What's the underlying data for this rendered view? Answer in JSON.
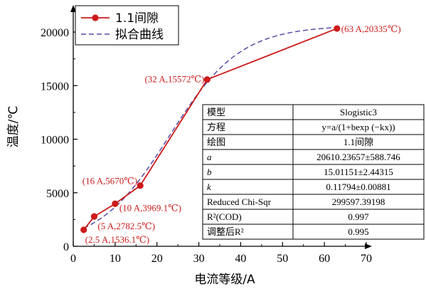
{
  "chart_data": {
    "type": "line",
    "xlabel": "电流等级/A",
    "ylabel": "温度/℃",
    "xlim": [
      0,
      70
    ],
    "ylim": [
      0,
      22000
    ],
    "xticks": [
      0,
      10,
      20,
      30,
      40,
      50,
      60,
      70
    ],
    "yticks": [
      0,
      5000,
      10000,
      15000,
      20000
    ],
    "xtick_labels": [
      "0",
      "10",
      "20",
      "30",
      "40",
      "50",
      "60",
      "70"
    ],
    "ytick_labels": [
      "0",
      "5000",
      "10000",
      "15000",
      "20000"
    ],
    "grid": false,
    "legend_position": "top-left",
    "series": [
      {
        "name": "1.1间隙",
        "style": "solid-markers",
        "color": "#cc1a1a",
        "x": [
          2.5,
          5,
          10,
          16,
          32,
          63
        ],
        "y": [
          1536.1,
          2782.5,
          3969.1,
          5670,
          15572,
          20335
        ]
      },
      {
        "name": "拟合曲线",
        "style": "dashed",
        "color": "#5b4aa8",
        "model": "logistic",
        "a": 20610.23657,
        "b": 15.01151,
        "k": 0.11794
      }
    ],
    "annotations": [
      {
        "x": 2.5,
        "y": 1536.1,
        "text": "(2.5 A,1536.1℃)"
      },
      {
        "x": 5,
        "y": 2782.5,
        "text": "(5 A,2782.5℃)"
      },
      {
        "x": 10,
        "y": 3969.1,
        "text": "(10 A,3969.1℃)"
      },
      {
        "x": 16,
        "y": 5670,
        "text": "(16 A,5670℃)"
      },
      {
        "x": 32,
        "y": 15572,
        "text": "(32 A,15572℃)"
      },
      {
        "x": 63,
        "y": 20335,
        "text": "(63 A,20335℃)"
      }
    ],
    "fit_table": [
      {
        "key": "模型",
        "value": "Slogistic3"
      },
      {
        "key": "方程",
        "value": "y=a/(1+bexp (−kx))"
      },
      {
        "key": "绘图",
        "value": "1.1间隙"
      },
      {
        "key": "a",
        "value": "20610.23657±588.746"
      },
      {
        "key": "b",
        "value": "15.01151±2.44315"
      },
      {
        "key": "k",
        "value": "0.11794±0.00881"
      },
      {
        "key": "Reduced Chi-Sqr",
        "value": "299597.39198"
      },
      {
        "key": "R²(COD)",
        "value": "0.997"
      },
      {
        "key": "调整后R²",
        "value": "0.995"
      }
    ]
  }
}
